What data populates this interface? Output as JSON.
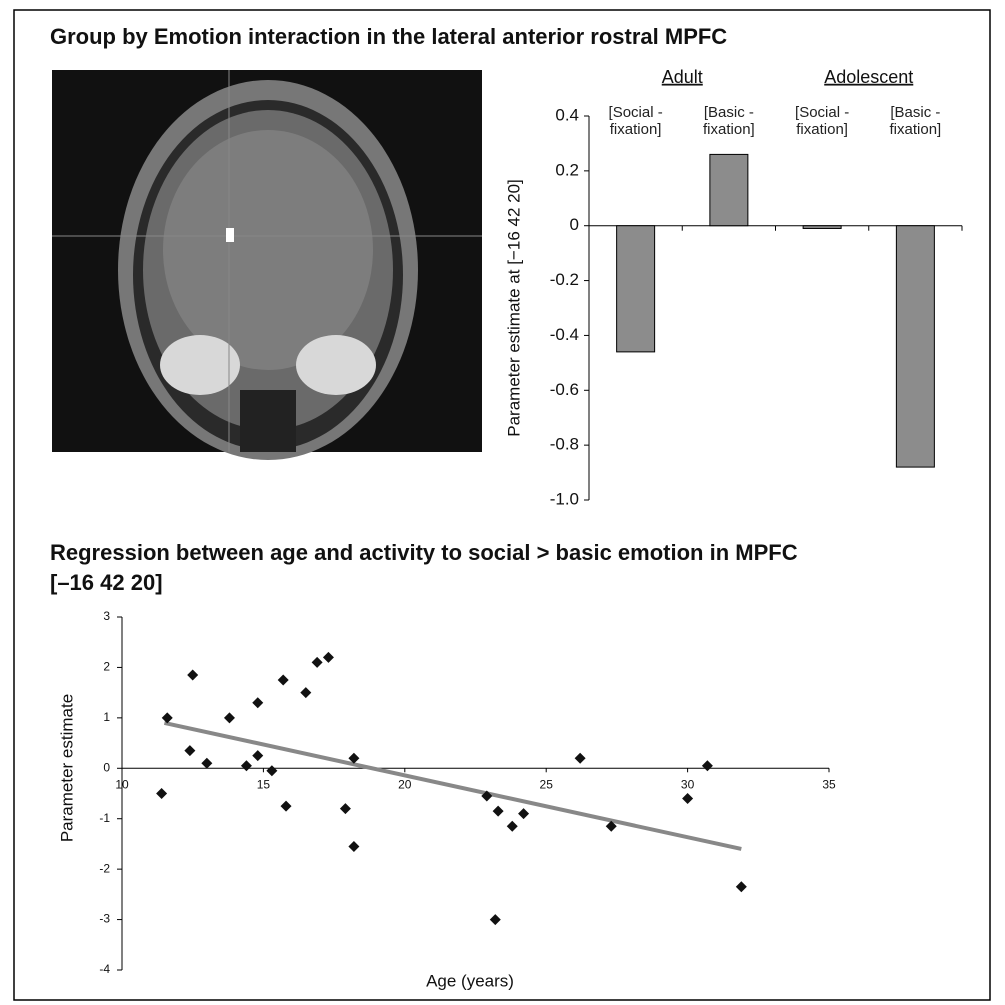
{
  "chart_data": [
    {
      "type": "bar",
      "title": "Group by Emotion interaction in the lateral anterior rostral MPFC",
      "y_label": "Parameter estimate at [−16 42 20]",
      "groups": [
        "Adult",
        "Adolescent"
      ],
      "categories": [
        "[Social - fixation]",
        "[Basic - fixation]",
        "[Social - fixation]",
        "[Basic - fixation]"
      ],
      "values": [
        -0.46,
        0.26,
        -0.01,
        -0.88
      ],
      "color": "#8c8c8c",
      "ylim": [
        -1,
        0.4
      ],
      "yticks": [
        0.4,
        0.2,
        0,
        -0.2,
        -0.4,
        -0.6,
        -0.8,
        {
          "value": -1,
          "label": "-1.0"
        }
      ]
    },
    {
      "type": "scatter",
      "title": "Regression between age and activity to social > basic emotion in MPFC [–16 42 20]",
      "x_label": "Age (years)",
      "y_label": "Parameter estimate",
      "x": [
        11.4,
        11.6,
        12.5,
        12.4,
        13.0,
        13.8,
        14.4,
        14.8,
        14.8,
        15.3,
        15.7,
        15.8,
        16.5,
        16.9,
        17.3,
        17.9,
        18.2,
        18.2,
        22.9,
        23.3,
        23.2,
        23.8,
        24.2,
        26.2,
        27.3,
        30.0,
        30.7,
        31.9
      ],
      "values": [
        -0.5,
        1.0,
        1.85,
        0.35,
        0.1,
        1.0,
        0.05,
        1.3,
        0.25,
        -0.05,
        1.75,
        -0.75,
        1.5,
        2.1,
        2.2,
        -0.8,
        0.2,
        -1.55,
        -0.55,
        -0.85,
        -3.0,
        -1.15,
        -0.9,
        0.2,
        -1.15,
        -0.6,
        0.05,
        -2.35
      ],
      "color": "#111111",
      "trend": {
        "x": [
          11.5,
          31.9
        ],
        "y": [
          0.9,
          -1.6
        ],
        "color": "#888888"
      },
      "xlim": [
        10,
        35
      ],
      "xticks": [
        10,
        15,
        20,
        25,
        30,
        35
      ],
      "ylim": [
        -4,
        3
      ],
      "yticks": [
        -4,
        -3,
        -2,
        -1,
        0,
        1,
        2,
        3
      ]
    }
  ]
}
